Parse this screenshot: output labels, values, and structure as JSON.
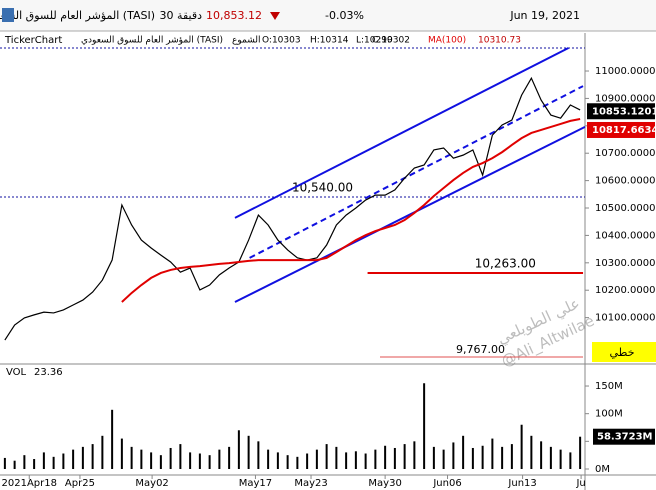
{
  "header": {
    "title": "المؤشر العام للسوق السعودي (TASI)",
    "interval": "30 دقيقة",
    "price": "10,853.12",
    "change": "-0.03%",
    "date": "Jun 19, 2021"
  },
  "info": {
    "brand": "TickerChart",
    "symbol": "المؤشر العام للسوق السعودي (TASI)",
    "style": "الشموع",
    "open": "O:10303",
    "high": "H:10314",
    "low": "L:10299",
    "close": "C:10302",
    "ma_name": "MA(100)",
    "ma_value": "10310.73"
  },
  "watermark": {
    "name": "علي الطويلعي",
    "handle": "@Ali_Altwilae"
  },
  "button": "خطي",
  "chart_data": {
    "type": "line",
    "xlim": [
      0,
      60
    ],
    "ylim": [
      9938,
      11084
    ],
    "xticks": [
      {
        "value": 3,
        "label": "2021Apr18"
      },
      {
        "value": 8.2,
        "label": "Apr25"
      },
      {
        "value": 15.6,
        "label": "May02"
      },
      {
        "value": 26.2,
        "label": "May17"
      },
      {
        "value": 31.9,
        "label": "May23"
      },
      {
        "value": 39.5,
        "label": "May30"
      },
      {
        "value": 45.9,
        "label": "Jun06"
      },
      {
        "value": 53.6,
        "label": "Jun13"
      },
      {
        "value": 59.6,
        "label": "Ju"
      }
    ],
    "yticks": [
      {
        "value": 11000,
        "label": "11000.0000"
      },
      {
        "value": 10900,
        "label": "10900.0000"
      },
      {
        "value": 10800,
        "label": "10800.0000"
      },
      {
        "value": 10700,
        "label": "10700.0000"
      },
      {
        "value": 10600,
        "label": "10600.0000"
      },
      {
        "value": 10500,
        "label": "10500.0000"
      },
      {
        "value": 10400,
        "label": "10400.0000"
      },
      {
        "value": 10300,
        "label": "10300.0000"
      },
      {
        "value": 10200,
        "label": "10200.0000"
      },
      {
        "value": 10100,
        "label": "10100.0000"
      }
    ],
    "series": [
      {
        "name": "TASI",
        "color": "#000000",
        "values": [
          10018,
          10073,
          10099,
          10110,
          10120,
          10117,
          10128,
          10146,
          10164,
          10193,
          10237,
          10310,
          10511,
          10438,
          10383,
          10354,
          10328,
          10303,
          10266,
          10281,
          10201,
          10219,
          10256,
          10281,
          10303,
          10383,
          10474,
          10438,
          10383,
          10347,
          10318,
          10310,
          10318,
          10365,
          10438,
          10474,
          10500,
          10529,
          10547,
          10547,
          10566,
          10609,
          10646,
          10657,
          10712,
          10719,
          10682,
          10693,
          10712,
          10620,
          10766,
          10803,
          10821,
          10912,
          10974,
          10894,
          10839,
          10828,
          10876,
          10858
        ]
      },
      {
        "name": "MA(100)",
        "color": "#e00000",
        "values": [
          null,
          null,
          null,
          null,
          null,
          null,
          null,
          null,
          null,
          null,
          null,
          null,
          10157,
          10190,
          10219,
          10245,
          10263,
          10274,
          10281,
          10285,
          10288,
          10292,
          10296,
          10299,
          10303,
          10307,
          10310,
          10310,
          10310,
          10310,
          10310,
          10310,
          10310,
          10318,
          10339,
          10361,
          10383,
          10401,
          10416,
          10427,
          10438,
          10456,
          10482,
          10511,
          10544,
          10573,
          10602,
          10628,
          10650,
          10664,
          10682,
          10704,
          10730,
          10755,
          10774,
          10785,
          10796,
          10807,
          10818,
          10825
        ]
      }
    ],
    "trendlines": [
      {
        "x": [
          24.1,
          58.3
        ],
        "values": [
          10464,
          11084
        ],
        "color": "#1010e0",
        "dashed": false
      },
      {
        "x": [
          24.1,
          60
        ],
        "values": [
          10157,
          10796
        ],
        "color": "#1010e0",
        "dashed": false
      },
      {
        "x": [
          25.6,
          59.8
        ],
        "values": [
          10318,
          10945
        ],
        "color": "#1010e0",
        "dashed": true
      }
    ],
    "hlines": [
      {
        "value": 10540,
        "label": "10,540.00",
        "color": "#1010a0",
        "dotted": true,
        "x": [
          0,
          60
        ]
      },
      {
        "value": 10263,
        "label": "10,263.00",
        "color": "#e00000",
        "dotted": false,
        "x": [
          37.7,
          59.8
        ]
      }
    ],
    "annotation": "9,767.00",
    "last_price": {
      "value": 10853.1201,
      "label": "10853.1201"
    },
    "ma_last": {
      "value": 10817.6634,
      "label": "10817.6634"
    },
    "volume": {
      "name": "VOL",
      "value_label": "23.36",
      "color": "#000000",
      "ylim": [
        0,
        188
      ],
      "yticks": [
        {
          "value": 150,
          "label": "150M"
        },
        {
          "value": 100,
          "label": "100M"
        },
        {
          "value": 50,
          "label": "50M"
        },
        {
          "value": 0,
          "label": "0M"
        }
      ],
      "values": [
        20,
        15,
        25,
        18,
        30,
        22,
        28,
        35,
        40,
        45,
        60,
        107,
        55,
        40,
        35,
        30,
        25,
        38,
        45,
        30,
        28,
        25,
        35,
        40,
        70,
        60,
        50,
        35,
        30,
        25,
        22,
        28,
        35,
        45,
        40,
        30,
        32,
        28,
        35,
        42,
        38,
        45,
        50,
        155,
        40,
        35,
        48,
        60,
        38,
        42,
        55,
        40,
        45,
        80,
        60,
        50,
        40,
        35,
        30,
        58.3723
      ],
      "last_label": "58.3723M"
    }
  }
}
